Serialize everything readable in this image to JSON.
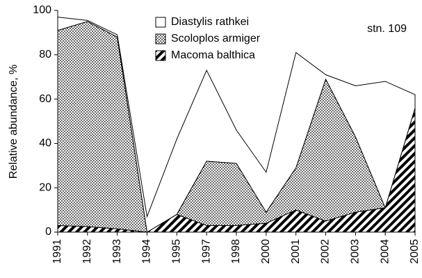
{
  "chart_data": {
    "type": "stacked_area",
    "y_label": "Relative abundance, %",
    "annotation": "stn. 109",
    "categories": [
      "1991",
      "1992",
      "1993",
      "1994",
      "1995",
      "1997",
      "1998",
      "2000",
      "2001",
      "2002",
      "2003",
      "2004",
      "2005"
    ],
    "series": [
      {
        "name": "Macoma balthica",
        "values": [
          3,
          2.5,
          1.5,
          0,
          8,
          3,
          3,
          4,
          10,
          5,
          9,
          11,
          56
        ]
      },
      {
        "name": "Scoloplos armiger",
        "values": [
          88,
          92.5,
          86.5,
          0,
          0,
          29,
          28,
          5,
          19,
          64,
          34,
          0,
          0
        ]
      },
      {
        "name": "Diastylis rathkei",
        "values": [
          6,
          0.5,
          1,
          7,
          34,
          41,
          15,
          18,
          52,
          2,
          23,
          57,
          6
        ]
      }
    ],
    "ylim": [
      0,
      100
    ],
    "yticks": [
      0,
      20,
      40,
      60,
      80,
      100
    ]
  }
}
